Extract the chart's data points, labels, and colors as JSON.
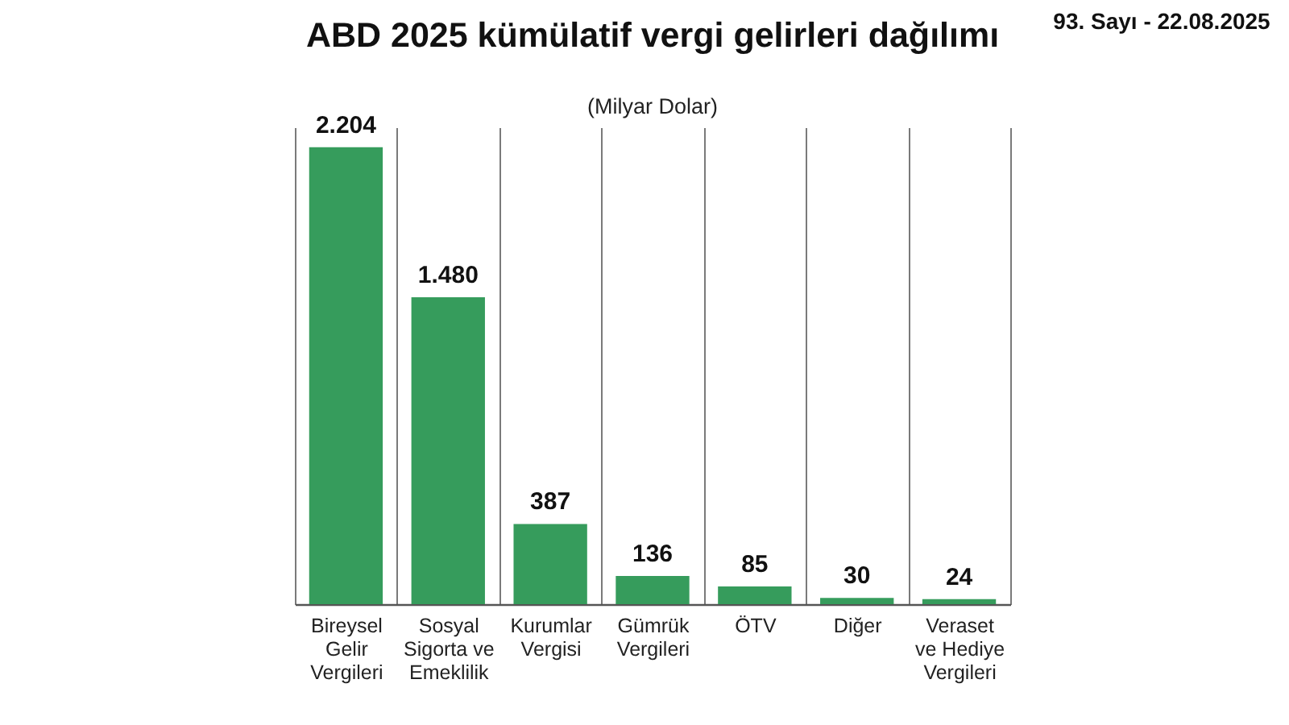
{
  "chart_data": {
    "type": "bar",
    "title": "ABD 2025 kümülatif vergi gelirleri dağılımı",
    "subtitle": "(Milyar Dolar)",
    "categories": [
      "Bireysel\nGelir\nVergileri",
      "Sosyal\nSigorta ve\nEmeklilik",
      "Kurumlar\nVergisi",
      "Gümrük\nVergileri",
      "ÖTV",
      "Diğer",
      "Veraset\nve Hediye\nVergileri"
    ],
    "values": [
      2204,
      1480,
      387,
      136,
      85,
      30,
      24
    ],
    "value_labels": [
      "2.204",
      "1.480",
      "387",
      "136",
      "85",
      "30",
      "24"
    ],
    "color": "#369c5c",
    "ylim": [
      0,
      2300
    ],
    "grid": "x",
    "tick_labels": "x",
    "annotations": [
      "93. Sayı - 22.08.2025"
    ]
  }
}
